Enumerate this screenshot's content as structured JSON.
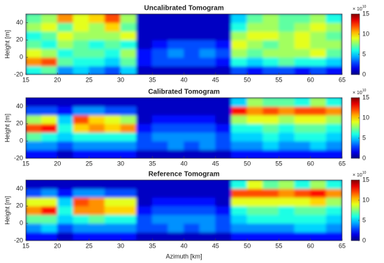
{
  "chart_data": [
    {
      "type": "heatmap",
      "title": "Uncalibrated Tomogram",
      "ylabel": "Height [m]",
      "xlim": [
        15,
        65
      ],
      "xticks": [
        15,
        20,
        25,
        30,
        35,
        40,
        45,
        50,
        55,
        60,
        65
      ],
      "ylim": [
        -20,
        50
      ],
      "yticks": [
        -20,
        0,
        20,
        40
      ],
      "xbins": [
        15,
        17.5,
        20,
        22.5,
        25,
        27.5,
        30,
        32.5,
        35,
        37.5,
        40,
        42.5,
        45,
        47.5,
        50,
        52.5,
        55,
        57.5,
        60,
        62.5,
        65
      ],
      "ybins": [
        -20,
        -10,
        0,
        10,
        20,
        30,
        40,
        50
      ],
      "z": [
        [
          6,
          7,
          4,
          5,
          4,
          3,
          5,
          1,
          1,
          1,
          1,
          1,
          1,
          3,
          2,
          3,
          3,
          2,
          3,
          2
        ],
        [
          11,
          12,
          7,
          6,
          6,
          5,
          7,
          2,
          3,
          3,
          3,
          3,
          2,
          6,
          5,
          6,
          7,
          6,
          6,
          5
        ],
        [
          9,
          8,
          6,
          7,
          7,
          6,
          8,
          2,
          3,
          4,
          3,
          4,
          3,
          8,
          7,
          8,
          8,
          8,
          9,
          7
        ],
        [
          7,
          6,
          8,
          7,
          6,
          7,
          6,
          1,
          2,
          3,
          3,
          3,
          2,
          9,
          8,
          7,
          8,
          9,
          8,
          8
        ],
        [
          6,
          7,
          9,
          8,
          8,
          8,
          9,
          1,
          1,
          1,
          1,
          1,
          1,
          8,
          9,
          9,
          8,
          9,
          8,
          7
        ],
        [
          8,
          9,
          7,
          9,
          8,
          10,
          7,
          1,
          1,
          1,
          1,
          1,
          1,
          6,
          8,
          8,
          7,
          8,
          9,
          8
        ],
        [
          7,
          8,
          11,
          9,
          10,
          12,
          8,
          1,
          1,
          1,
          1,
          1,
          1,
          5,
          7,
          8,
          7,
          7,
          8,
          6
        ]
      ],
      "clim": [
        0,
        15
      ],
      "cticks": [
        0,
        5,
        10,
        15
      ],
      "colorbar_label": "× 10",
      "colorbar_exponent": "10"
    },
    {
      "type": "heatmap",
      "title": "Calibrated Tomogram",
      "ylabel": "Height [m]",
      "xlim": [
        15,
        65
      ],
      "xticks": [
        15,
        20,
        25,
        30,
        35,
        40,
        45,
        50,
        55,
        60,
        65
      ],
      "ylim": [
        -20,
        50
      ],
      "yticks": [
        -20,
        0,
        20,
        40
      ],
      "xbins": [
        15,
        17.5,
        20,
        22.5,
        25,
        27.5,
        30,
        32.5,
        35,
        37.5,
        40,
        42.5,
        45,
        47.5,
        50,
        52.5,
        55,
        57.5,
        60,
        62.5,
        65
      ],
      "ybins": [
        -20,
        -10,
        0,
        10,
        20,
        30,
        40,
        50
      ],
      "z": [
        [
          2,
          2,
          1,
          2,
          2,
          2,
          2,
          1,
          1,
          1,
          1,
          1,
          1,
          2,
          2,
          2,
          2,
          2,
          2,
          2
        ],
        [
          4,
          4,
          3,
          4,
          4,
          4,
          4,
          3,
          3,
          4,
          3,
          4,
          3,
          4,
          4,
          5,
          4,
          4,
          5,
          4
        ],
        [
          7,
          6,
          5,
          6,
          6,
          6,
          6,
          3,
          4,
          4,
          4,
          4,
          3,
          5,
          5,
          6,
          5,
          6,
          6,
          5
        ],
        [
          12,
          13,
          6,
          10,
          11,
          10,
          11,
          2,
          3,
          3,
          3,
          3,
          2,
          6,
          6,
          7,
          6,
          7,
          7,
          6
        ],
        [
          8,
          9,
          5,
          12,
          10,
          9,
          8,
          1,
          2,
          2,
          2,
          2,
          1,
          8,
          9,
          9,
          8,
          9,
          9,
          8
        ],
        [
          3,
          3,
          2,
          4,
          4,
          3,
          3,
          1,
          1,
          1,
          1,
          1,
          1,
          13,
          11,
          12,
          11,
          12,
          12,
          11
        ],
        [
          1,
          1,
          1,
          1,
          1,
          1,
          1,
          1,
          1,
          1,
          1,
          1,
          1,
          5,
          8,
          7,
          7,
          6,
          8,
          6
        ]
      ],
      "clim": [
        0,
        15
      ],
      "cticks": [
        0,
        5,
        10,
        15
      ],
      "colorbar_label": "× 10",
      "colorbar_exponent": "10"
    },
    {
      "type": "heatmap",
      "title": "Reference Tomogram",
      "ylabel": "Height [m]",
      "xlabel": "Azimuth [km]",
      "xlim": [
        15,
        65
      ],
      "xticks": [
        15,
        20,
        25,
        30,
        35,
        40,
        45,
        50,
        55,
        60,
        65
      ],
      "ylim": [
        -20,
        50
      ],
      "yticks": [
        -20,
        0,
        20,
        40
      ],
      "xbins": [
        15,
        17.5,
        20,
        22.5,
        25,
        27.5,
        30,
        32.5,
        35,
        37.5,
        40,
        42.5,
        45,
        47.5,
        50,
        52.5,
        55,
        57.5,
        60,
        62.5,
        65
      ],
      "ybins": [
        -20,
        -10,
        0,
        10,
        20,
        30,
        40,
        50
      ],
      "z": [
        [
          2,
          2,
          1,
          2,
          2,
          2,
          2,
          1,
          1,
          1,
          1,
          1,
          1,
          2,
          2,
          2,
          2,
          2,
          2,
          2
        ],
        [
          4,
          5,
          3,
          4,
          4,
          4,
          4,
          3,
          3,
          4,
          3,
          4,
          3,
          4,
          4,
          4,
          4,
          5,
          5,
          4
        ],
        [
          7,
          7,
          5,
          6,
          7,
          6,
          6,
          3,
          4,
          4,
          4,
          4,
          3,
          5,
          6,
          6,
          6,
          6,
          6,
          5
        ],
        [
          11,
          13,
          6,
          11,
          11,
          10,
          10,
          2,
          3,
          3,
          3,
          3,
          2,
          6,
          7,
          7,
          6,
          7,
          7,
          6
        ],
        [
          9,
          9,
          5,
          12,
          11,
          9,
          9,
          1,
          2,
          2,
          2,
          2,
          1,
          9,
          9,
          9,
          9,
          9,
          10,
          8
        ],
        [
          3,
          4,
          2,
          4,
          4,
          3,
          3,
          1,
          1,
          1,
          1,
          1,
          1,
          12,
          12,
          12,
          11,
          12,
          13,
          11
        ],
        [
          1,
          1,
          1,
          1,
          1,
          1,
          1,
          1,
          1,
          1,
          1,
          1,
          1,
          6,
          9,
          7,
          8,
          6,
          8,
          6
        ]
      ],
      "clim": [
        0,
        15
      ],
      "cticks": [
        0,
        5,
        10,
        15
      ],
      "colorbar_label": "× 10",
      "colorbar_exponent": "10"
    }
  ]
}
